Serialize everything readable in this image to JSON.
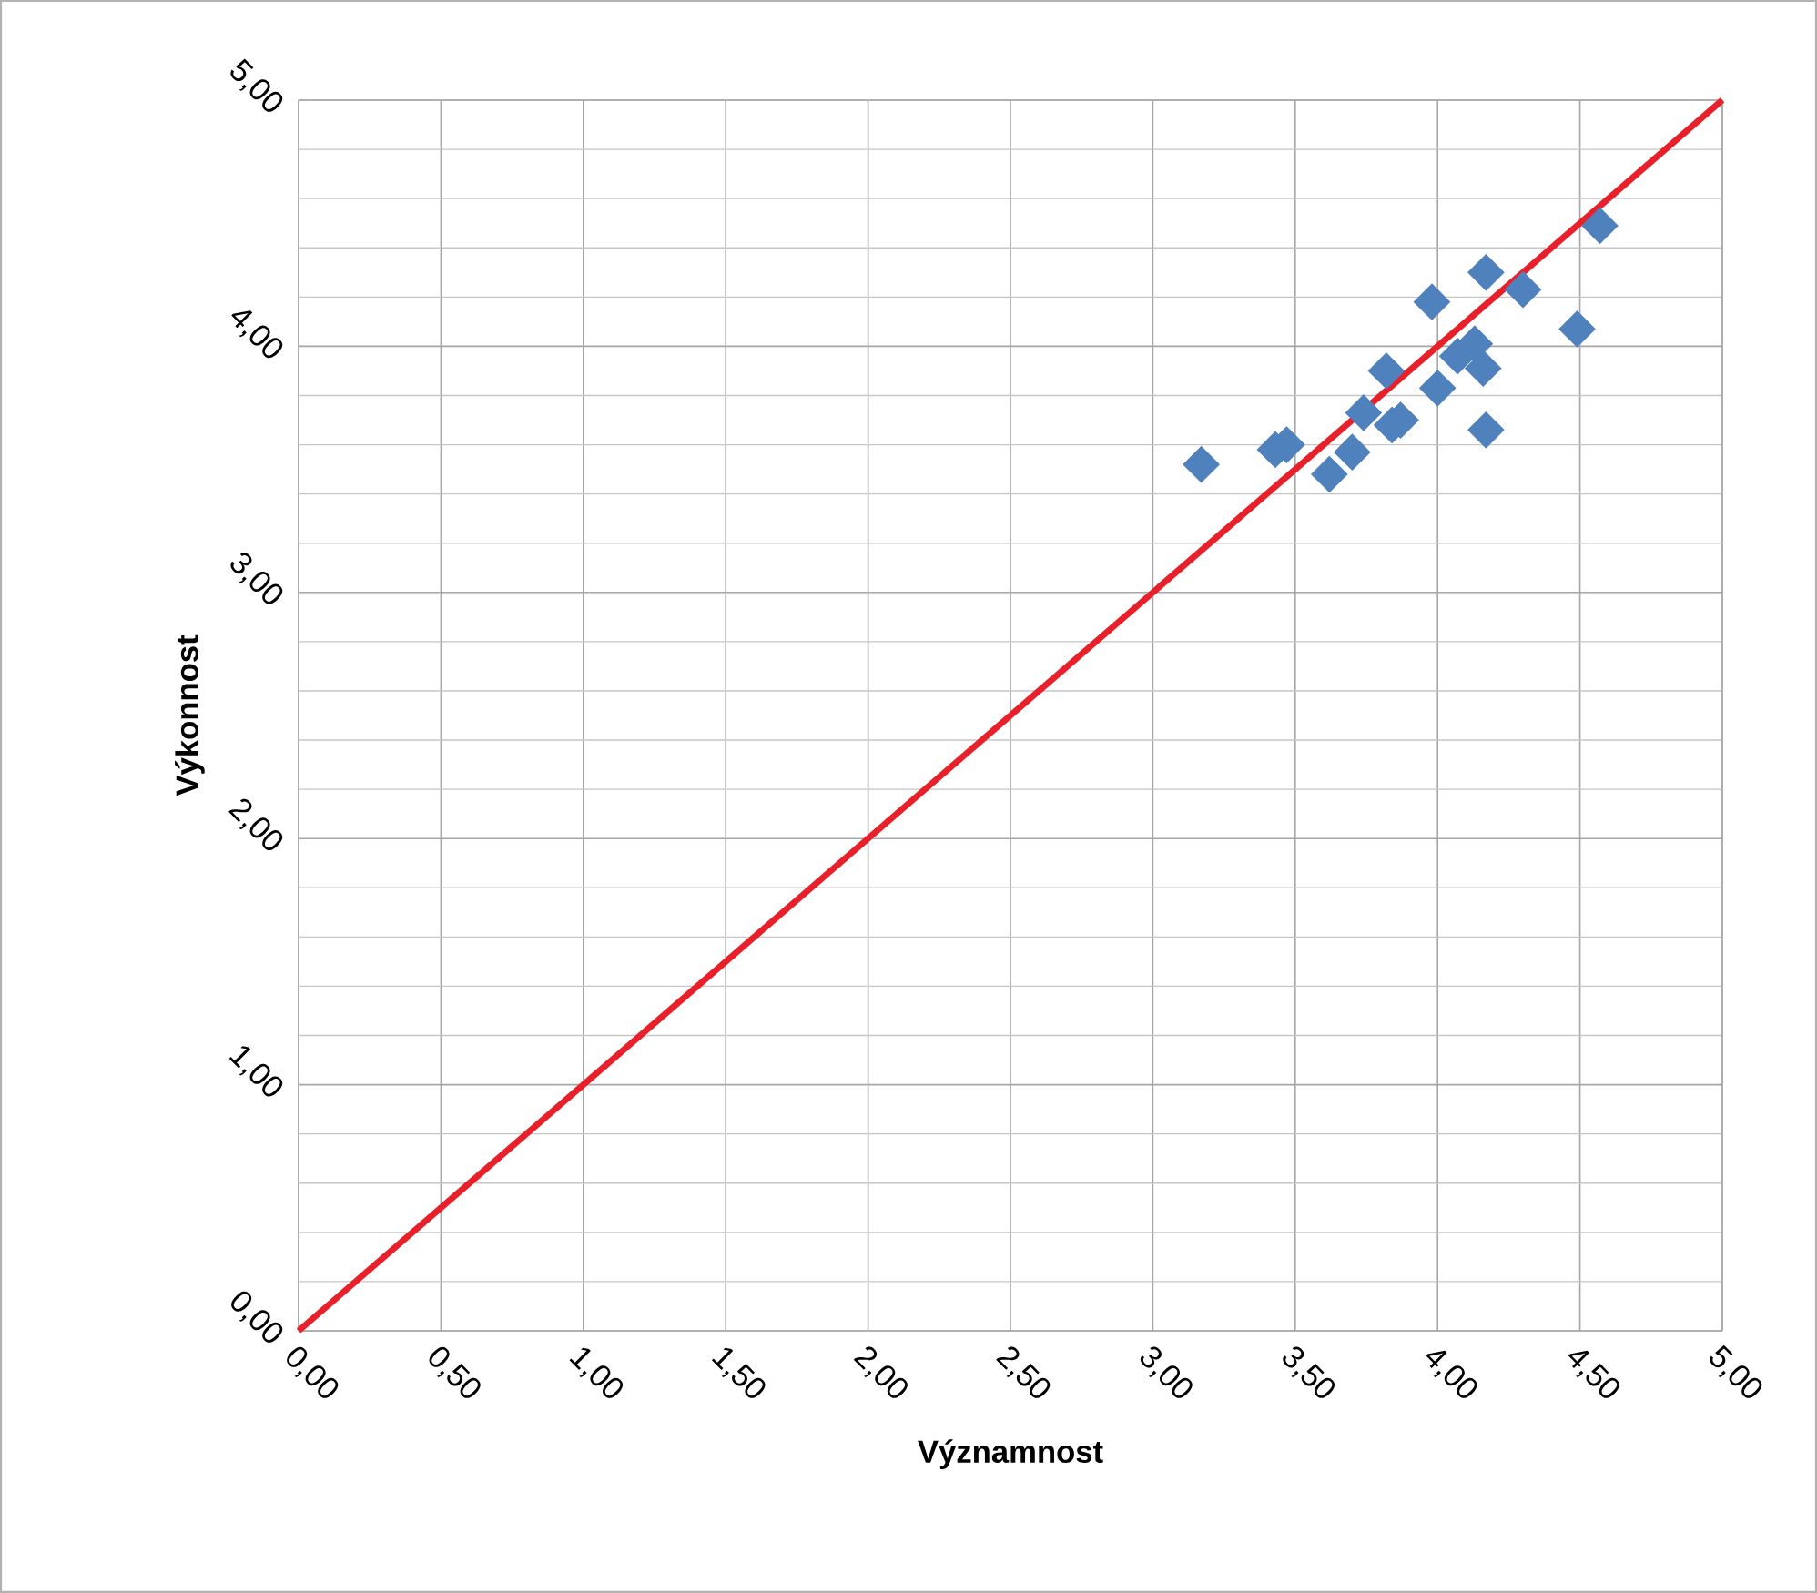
{
  "chart_data": {
    "type": "scatter",
    "xlabel": "Významnost",
    "ylabel": "Výkonnost",
    "marker": "diamond",
    "grid": true,
    "xlim": [
      0,
      5
    ],
    "ylim": [
      0,
      5
    ],
    "xticks": [
      {
        "value": 0,
        "label": "0,00"
      },
      {
        "value": 0.5,
        "label": "0,50"
      },
      {
        "value": 1,
        "label": "1,00"
      },
      {
        "value": 1.5,
        "label": "1,50"
      },
      {
        "value": 2,
        "label": "2,00"
      },
      {
        "value": 2.5,
        "label": "2,50"
      },
      {
        "value": 3,
        "label": "3,00"
      },
      {
        "value": 3.5,
        "label": "3,50"
      },
      {
        "value": 4,
        "label": "4,00"
      },
      {
        "value": 4.5,
        "label": "4,50"
      },
      {
        "value": 5,
        "label": "5,00"
      }
    ],
    "yticks": [
      {
        "value": 0,
        "label": "0,00"
      },
      {
        "value": 1,
        "label": "1,00"
      },
      {
        "value": 2,
        "label": "2,00"
      },
      {
        "value": 3,
        "label": "3,00"
      },
      {
        "value": 4,
        "label": "4,00"
      },
      {
        "value": 5,
        "label": "5,00"
      }
    ],
    "series": [
      {
        "color": "#4f81bd",
        "x": [
          3.17,
          3.43,
          3.47,
          3.62,
          3.7,
          3.74,
          3.82,
          3.84,
          3.87,
          3.98,
          4.0,
          4.07,
          4.13,
          4.16,
          4.17,
          4.17,
          4.3,
          4.49,
          4.57
        ],
        "values": [
          3.52,
          3.58,
          3.6,
          3.48,
          3.57,
          3.73,
          3.9,
          3.68,
          3.7,
          4.18,
          3.83,
          3.96,
          4.01,
          3.91,
          4.3,
          3.66,
          4.23,
          4.07,
          4.49
        ]
      },
      {
        "type": "line",
        "color": "#e8202a",
        "marker": "none",
        "x": [
          0,
          5
        ],
        "values": [
          0,
          5
        ]
      }
    ]
  }
}
